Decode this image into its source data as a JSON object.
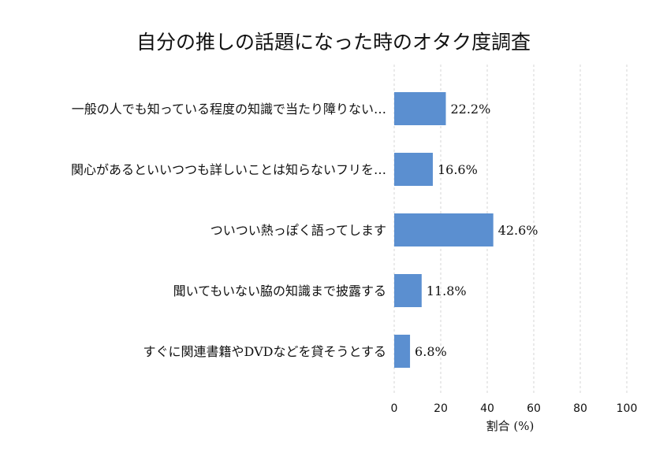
{
  "colors": {
    "bar": "#5b8fd0",
    "grid": "#cccccc",
    "text": "#111111",
    "background": "#ffffff"
  },
  "chart_data": {
    "type": "bar",
    "orientation": "horizontal",
    "title": "自分の推しの話題になった時のオタク度調査",
    "xlabel": "割合 (%)",
    "ylabel": "",
    "xlim": [
      0,
      100
    ],
    "xticks": [
      "0",
      "20",
      "40",
      "60",
      "80",
      "100"
    ],
    "grid": "vertical-dashed",
    "categories": [
      "一般の人でも知っている程度の知識で当たり障りない…",
      "関心があるといいつつも詳しいことは知らないフリを…",
      "ついつい熱っぽく語ってします",
      "聞いてもいない脇の知識まで披露する",
      "すぐに関連書籍やDVDなどを貸そうとする"
    ],
    "values": [
      22.2,
      16.6,
      42.6,
      11.8,
      6.8
    ],
    "value_labels": [
      "22.2%",
      "16.6%",
      "42.6%",
      "11.8%",
      "6.8%"
    ]
  }
}
